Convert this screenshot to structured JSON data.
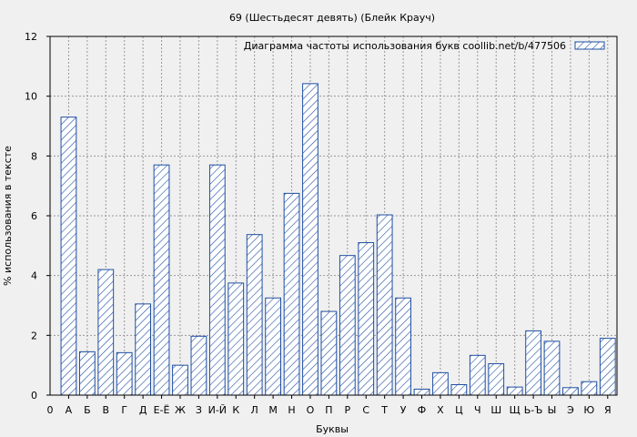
{
  "chart_data": {
    "type": "bar",
    "title": "69 (Шестьдесят девять) (Блейк Крауч)",
    "xlabel": "Буквы",
    "ylabel": "% использования в тексте",
    "ylim": [
      0,
      12
    ],
    "yticks": [
      0,
      2,
      4,
      6,
      8,
      10,
      12
    ],
    "grid": true,
    "legend_position": "top-right",
    "colors": {
      "bar_stroke": "#1f4fa3",
      "hatch": "#1f4fa3",
      "background": "#f0f0f0"
    },
    "x_start_label": "0",
    "categories": [
      "А",
      "Б",
      "В",
      "Г",
      "Д",
      "Е-Ё",
      "Ж",
      "З",
      "И-Й",
      "К",
      "Л",
      "М",
      "Н",
      "О",
      "П",
      "Р",
      "С",
      "Т",
      "У",
      "Ф",
      "Х",
      "Ц",
      "Ч",
      "Ш",
      "Щ",
      "Ь-Ъ",
      "Ы",
      "Э",
      "Ю",
      "Я"
    ],
    "series": [
      {
        "name": "Диаграмма частоты использования букв  coollib.net/b/477506",
        "values": [
          9.3,
          1.45,
          4.2,
          1.42,
          3.05,
          7.7,
          1.0,
          1.97,
          7.7,
          3.75,
          5.37,
          3.25,
          6.75,
          10.42,
          2.8,
          4.67,
          5.1,
          6.03,
          3.25,
          0.2,
          0.75,
          0.35,
          1.33,
          1.05,
          0.27,
          2.15,
          1.8,
          0.25,
          0.45,
          1.9
        ]
      }
    ]
  }
}
